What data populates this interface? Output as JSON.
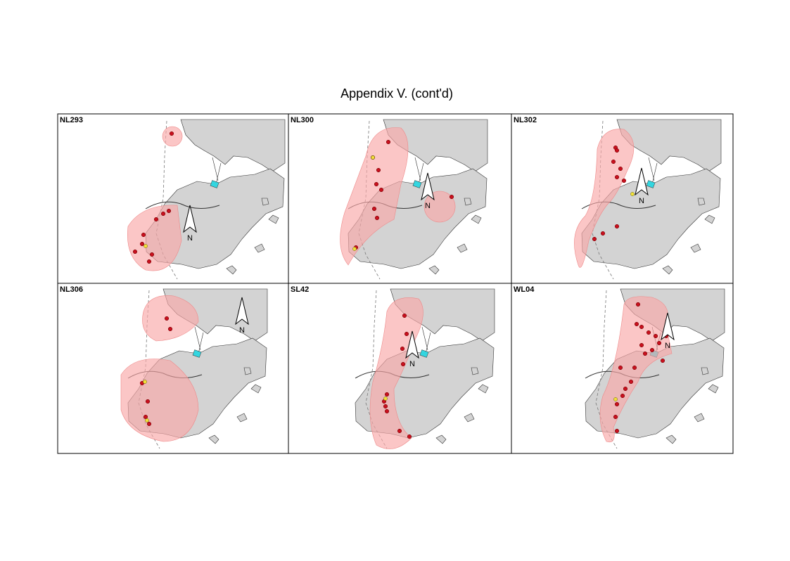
{
  "title": "Appendix V.  (cont'd)",
  "panels": [
    {
      "label": "NL293",
      "north": "N"
    },
    {
      "label": "NL300",
      "north": "N"
    },
    {
      "label": "NL302",
      "north": "N"
    },
    {
      "label": "NL306",
      "north": "N"
    },
    {
      "label": "SL42",
      "north": "N"
    },
    {
      "label": "WL04",
      "north": "N"
    }
  ]
}
